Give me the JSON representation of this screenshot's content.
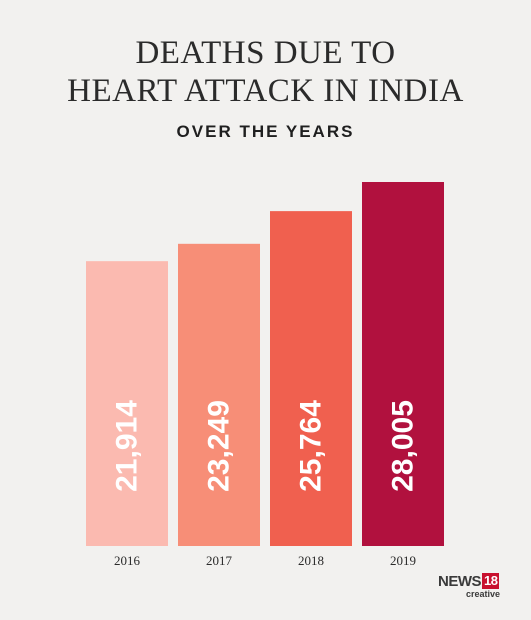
{
  "header": {
    "title_line1": "DEATHS DUE TO",
    "title_line2": "HEART ATTACK IN INDIA",
    "subtitle": "OVER THE YEARS"
  },
  "logo": {
    "brand": "NEWS",
    "number": "18",
    "tagline": "creative"
  },
  "chart_data": {
    "type": "bar",
    "title": "DEATHS DUE TO HEART ATTACK IN INDIA",
    "subtitle": "OVER THE YEARS",
    "categories": [
      "2016",
      "2017",
      "2018",
      "2019"
    ],
    "values": [
      21914,
      23249,
      25764,
      28005
    ],
    "value_labels": [
      "21,914",
      "23,249",
      "25,764",
      "28,005"
    ],
    "bar_colors": [
      "#fbbab0",
      "#f78e77",
      "#f0604f",
      "#b1113e"
    ],
    "ylim": [
      0,
      28005
    ],
    "grid": false,
    "legend": "none"
  }
}
